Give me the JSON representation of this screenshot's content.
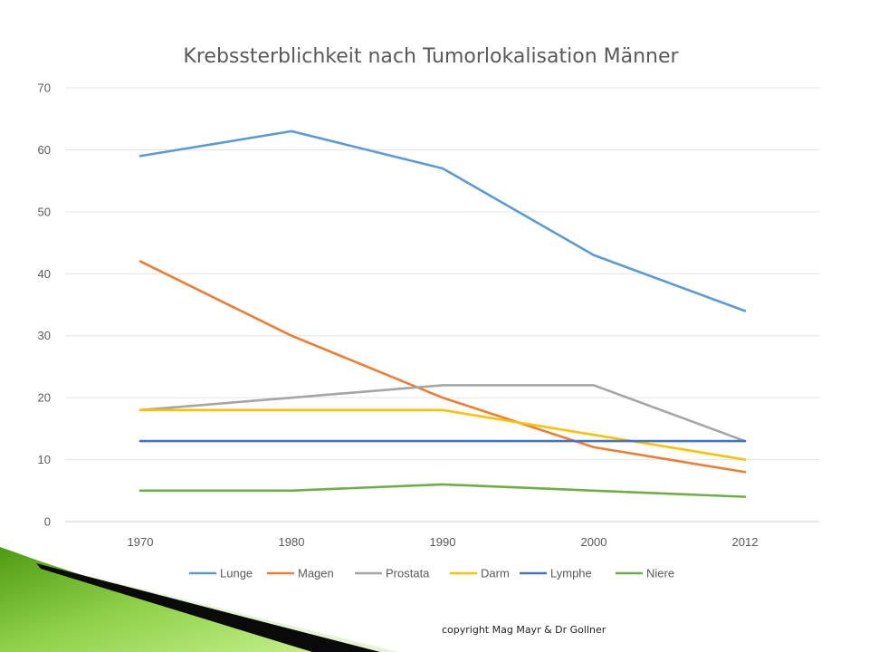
{
  "chart_data": {
    "type": "line",
    "title": "Krebssterblichkeit nach Tumorlokalisation Männer",
    "categories": [
      "1970",
      "1980",
      "1990",
      "2000",
      "2012"
    ],
    "y_ticks": [
      "0",
      "10",
      "20",
      "30",
      "40",
      "50",
      "60",
      "70"
    ],
    "ylim": [
      0,
      70
    ],
    "grid": true,
    "legend_position": "bottom",
    "series": [
      {
        "name": "Lunge",
        "color": "#5B9BD5",
        "values": [
          59,
          63,
          57,
          43,
          34
        ]
      },
      {
        "name": "Magen",
        "color": "#ED7D31",
        "values": [
          42,
          30,
          20,
          12,
          8
        ]
      },
      {
        "name": "Prostata",
        "color": "#A5A5A5",
        "values": [
          18,
          20,
          22,
          22,
          13
        ]
      },
      {
        "name": "Darm",
        "color": "#FFC000",
        "values": [
          18,
          18,
          18,
          14,
          10
        ]
      },
      {
        "name": "Lymphe",
        "color": "#4472C4",
        "values": [
          13,
          13,
          13,
          13,
          13
        ]
      },
      {
        "name": "Niere",
        "color": "#70AD47",
        "values": [
          5,
          5,
          6,
          5,
          4
        ]
      }
    ]
  },
  "footer": {
    "copyright": "copyright Mag Mayr & Dr Gollner"
  }
}
